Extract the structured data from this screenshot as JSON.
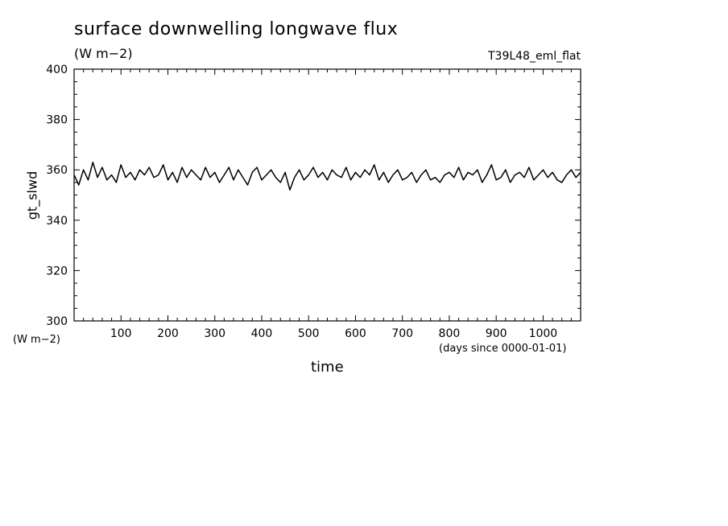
{
  "chart_data": {
    "type": "line",
    "title": "surface downwelling longwave flux",
    "units": "(W m−2)",
    "run_label": "T39L48_eml_flat",
    "ylabel": "gt_slwd",
    "ylabel_units": "(W m−2)",
    "xlabel": "time",
    "xlabel_units": "(days since 0000-01-01)",
    "xlim": [
      0,
      1080
    ],
    "ylim": [
      300,
      400
    ],
    "xticks": [
      100,
      200,
      300,
      400,
      500,
      600,
      700,
      800,
      900,
      1000
    ],
    "yticks": [
      300,
      320,
      340,
      360,
      380,
      400
    ],
    "grid": false,
    "series": [
      {
        "x": [
          0,
          10,
          20,
          30,
          40,
          50,
          60,
          70,
          80,
          90,
          100,
          110,
          120,
          130,
          140,
          150,
          160,
          170,
          180,
          190,
          200,
          210,
          220,
          230,
          240,
          250,
          260,
          270,
          280,
          290,
          300,
          310,
          320,
          330,
          340,
          350,
          360,
          370,
          380,
          390,
          400,
          410,
          420,
          430,
          440,
          450,
          460,
          470,
          480,
          490,
          500,
          510,
          520,
          530,
          540,
          550,
          560,
          570,
          580,
          590,
          600,
          610,
          620,
          630,
          640,
          650,
          660,
          670,
          680,
          690,
          700,
          710,
          720,
          730,
          740,
          750,
          760,
          770,
          780,
          790,
          800,
          810,
          820,
          830,
          840,
          850,
          860,
          870,
          880,
          890,
          900,
          910,
          920,
          930,
          940,
          950,
          960,
          970,
          980,
          990,
          1000,
          1010,
          1020,
          1030,
          1040,
          1050,
          1060,
          1070,
          1080
        ],
        "values": [
          358,
          354,
          360,
          356,
          363,
          357,
          361,
          356,
          358,
          355,
          362,
          357,
          359,
          356,
          360,
          358,
          361,
          357,
          358,
          362,
          356,
          359,
          355,
          361,
          357,
          360,
          358,
          356,
          361,
          357,
          359,
          355,
          358,
          361,
          356,
          360,
          357,
          354,
          359,
          361,
          356,
          358,
          360,
          357,
          355,
          359,
          352,
          357,
          360,
          356,
          358,
          361,
          357,
          359,
          356,
          360,
          358,
          357,
          361,
          356,
          359,
          357,
          360,
          358,
          362,
          356,
          359,
          355,
          358,
          360,
          356,
          357,
          359,
          355,
          358,
          360,
          356,
          357,
          355,
          358,
          359,
          357,
          361,
          356,
          359,
          358,
          360,
          355,
          358,
          362,
          356,
          357,
          360,
          355,
          358,
          359,
          357,
          361,
          356,
          358,
          360,
          357,
          359,
          356,
          355,
          358,
          360,
          357,
          359
        ]
      }
    ]
  }
}
